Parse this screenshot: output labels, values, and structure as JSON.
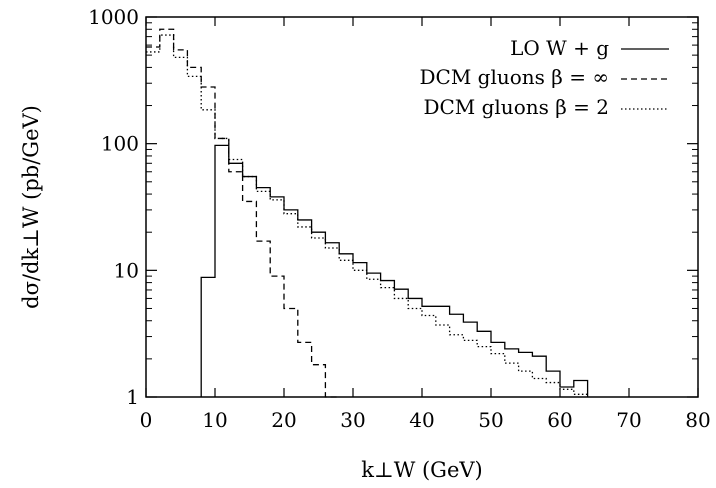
{
  "chart_data": {
    "type": "line",
    "xlabel": "k⊥W (GeV)",
    "ylabel": "dσ/dk⊥W (pb/GeV)",
    "xlim": [
      0,
      80
    ],
    "ylim": [
      1,
      1000
    ],
    "y_scale": "log",
    "grid": false,
    "legend_position": "top-right",
    "x_ticks": [
      0,
      10,
      20,
      30,
      40,
      50,
      60,
      70,
      80
    ],
    "y_ticks": [
      1,
      10,
      100,
      1000
    ],
    "x_tick_labels": [
      "0",
      "10",
      "20",
      "30",
      "40",
      "50",
      "60",
      "70",
      "80"
    ],
    "y_tick_labels": [
      "1",
      "10",
      "100",
      "1000"
    ],
    "bin_edges": [
      0,
      2,
      4,
      6,
      8,
      10,
      12,
      14,
      16,
      18,
      20,
      22,
      24,
      26,
      28,
      30,
      32,
      34,
      36,
      38,
      40,
      42,
      44,
      46,
      48,
      50,
      52,
      54,
      56,
      58,
      60,
      62,
      64
    ],
    "series": [
      {
        "name": "LO W + g",
        "style": "solid",
        "values": [
          null,
          null,
          null,
          null,
          8.8,
          97,
          70,
          55,
          45,
          38,
          30,
          25,
          20,
          16.5,
          13.5,
          11.5,
          9.5,
          8.3,
          7.1,
          6,
          5.2,
          5.2,
          4.5,
          3.9,
          3.3,
          2.7,
          2.4,
          2.25,
          2.1,
          1.6,
          1.2,
          1.35
        ]
      },
      {
        "name": "DCM gluons β = ∞",
        "style": "dashed",
        "values": [
          580,
          800,
          550,
          400,
          280,
          110,
          60,
          35,
          17,
          9,
          5,
          2.7,
          1.8,
          1.0
        ]
      },
      {
        "name": "DCM gluons β = 2",
        "style": "dotted",
        "values": [
          530,
          720,
          480,
          340,
          185,
          110,
          75,
          55,
          42,
          36,
          28,
          22,
          18,
          15,
          12,
          10,
          8.5,
          7.3,
          6,
          5,
          4.4,
          3.7,
          3.1,
          2.8,
          2.5,
          2.2,
          1.85,
          1.6,
          1.4,
          1.3,
          1.15,
          1.05
        ]
      }
    ]
  }
}
